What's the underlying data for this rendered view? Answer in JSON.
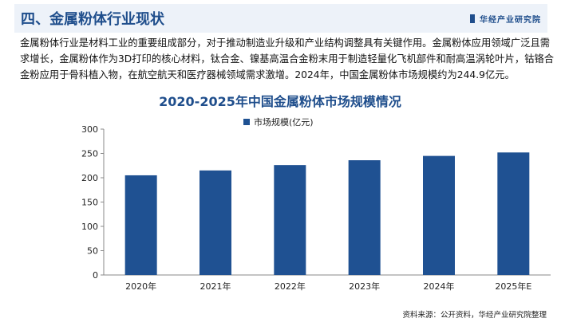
{
  "header": {
    "title": "四、金属粉体行业现状",
    "brand": "华经产业研究院"
  },
  "paragraph": "金属粉体行业是材料工业的重要组成部分，对于推动制造业升级和产业结构调整具有关键作用。金属粉体应用领域广泛且需求增长，金属粉体作为3D打印的核心材料，钛合金、镍基高温合金粉末用于制造轻量化飞机部件和耐高温涡轮叶片，钴铬合金粉应用于骨科植入物，在航空航天和医疗器械领域需求激增。2024年，中国金属粉体市场规模约为244.9亿元。",
  "source": "资料来源：公开资料，华经产业研究院整理",
  "colors": {
    "bar": "#1f5192",
    "title": "#1f4e8c"
  },
  "chart_data": {
    "type": "bar",
    "title": "2020-2025年中国金属粉体市场规模情况",
    "categories": [
      "2020年",
      "2021年",
      "2022年",
      "2023年",
      "2024年",
      "2025年E"
    ],
    "series": [
      {
        "name": "市场规模(亿元)",
        "values": [
          205,
          215,
          226,
          236,
          244.9,
          252
        ]
      }
    ],
    "yticks": [
      0,
      50,
      100,
      150,
      200,
      250,
      300
    ],
    "ylim": [
      0,
      300
    ],
    "legend": "top-center",
    "grid": false
  }
}
